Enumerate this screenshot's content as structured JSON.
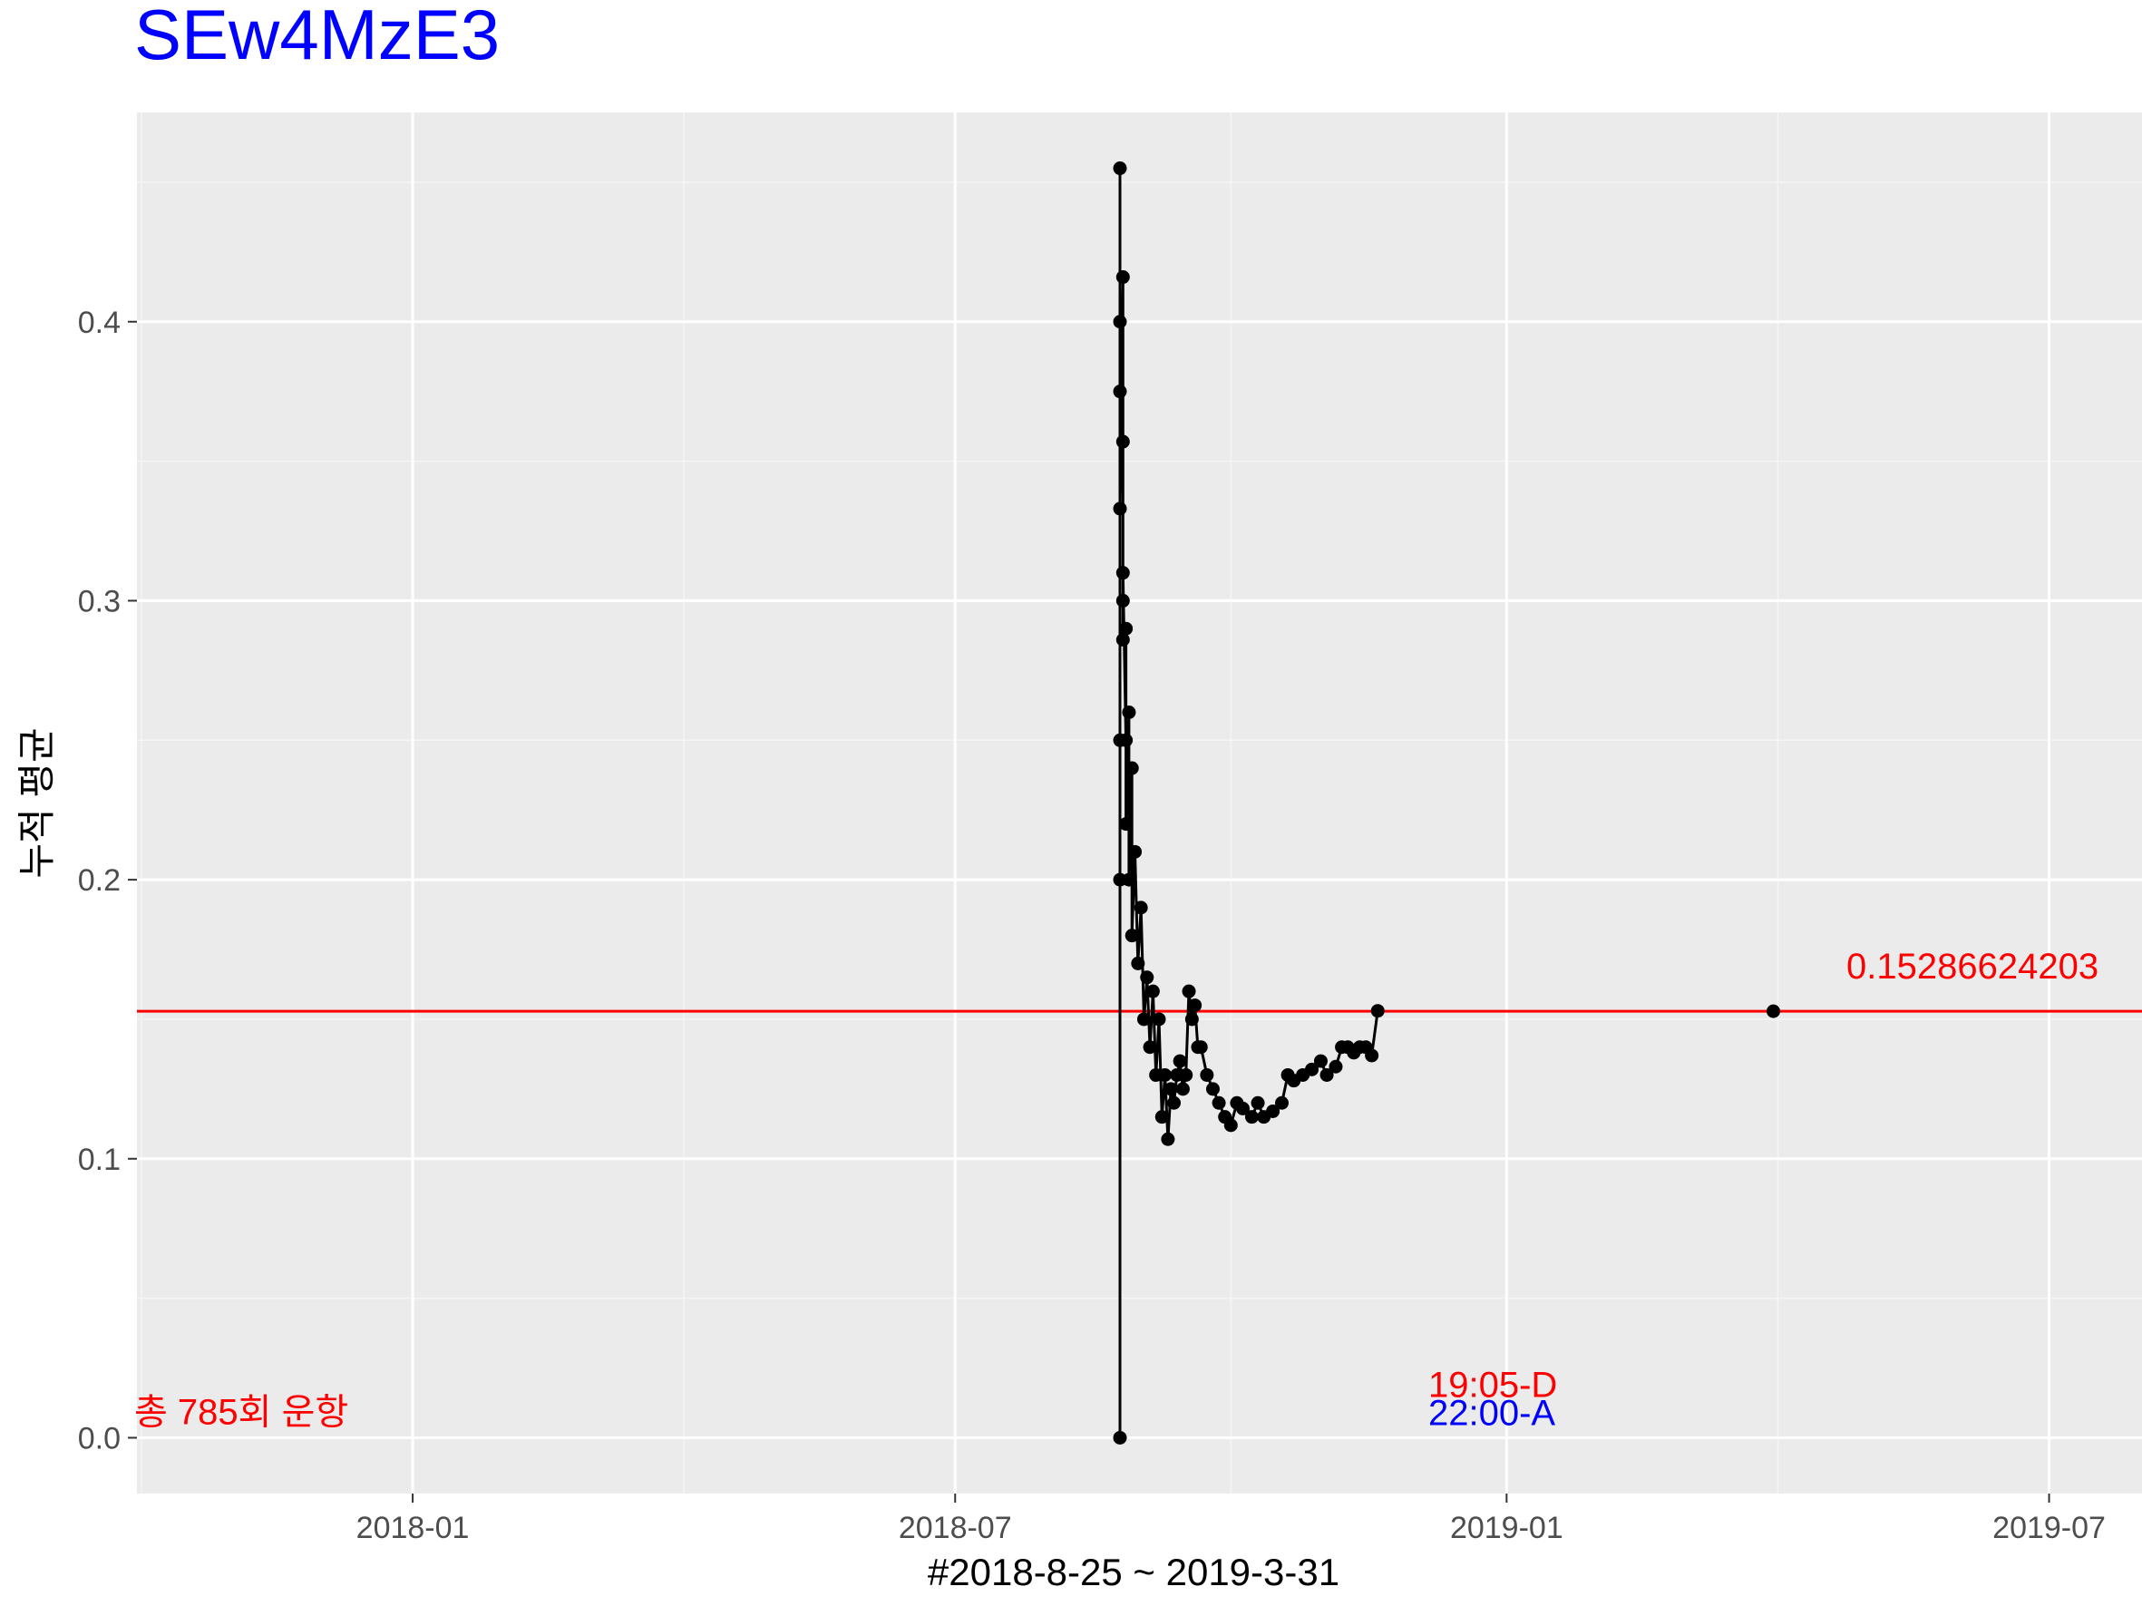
{
  "chart_data": {
    "type": "line",
    "title": "SEw4MzE3",
    "xlabel": "#2018-8-25 ~ 2019-3-31",
    "ylabel": "누적 평균",
    "x_ticks": [
      "2018-01",
      "2018-07",
      "2019-01",
      "2019-07"
    ],
    "y_ticks": [
      "0.0",
      "0.1",
      "0.2",
      "0.3",
      "0.4"
    ],
    "xlim": [
      "2017-10-01",
      "2019-08-01"
    ],
    "ylim": [
      -0.02,
      0.475
    ],
    "grid": true,
    "hline": {
      "value": 0.15286624203,
      "label": "0.15286624203"
    },
    "annotations": {
      "total_flights": "총 785회 운항",
      "departure_time": "19:05-D",
      "arrival_time": "22:00-A"
    },
    "series": [
      {
        "x": [
          "2018-08-25",
          "2018-08-25",
          "2018-08-25",
          "2018-08-25",
          "2018-08-25",
          "2018-08-25",
          "2018-08-25",
          "2018-08-26",
          "2018-08-26",
          "2018-08-26",
          "2018-08-26",
          "2018-08-26",
          "2018-08-27",
          "2018-08-27",
          "2018-08-27",
          "2018-08-28",
          "2018-08-28",
          "2018-08-29",
          "2018-08-29",
          "2018-08-30",
          "2018-08-31",
          "2018-09-01",
          "2018-09-02",
          "2018-09-03",
          "2018-09-04",
          "2018-09-05",
          "2018-09-06",
          "2018-09-07",
          "2018-09-08",
          "2018-09-09",
          "2018-09-10",
          "2018-09-11",
          "2018-09-12",
          "2018-09-13",
          "2018-09-14",
          "2018-09-15",
          "2018-09-16",
          "2018-09-17",
          "2018-09-18",
          "2018-09-19",
          "2018-09-20",
          "2018-09-21",
          "2018-09-23",
          "2018-09-25",
          "2018-09-27",
          "2018-09-29",
          "2018-10-01",
          "2018-10-03",
          "2018-10-05",
          "2018-10-08",
          "2018-10-10",
          "2018-10-12",
          "2018-10-15",
          "2018-10-18",
          "2018-10-20",
          "2018-10-22",
          "2018-10-25",
          "2018-10-28",
          "2018-10-31",
          "2018-11-02",
          "2018-11-05",
          "2018-11-07",
          "2018-11-09",
          "2018-11-11",
          "2018-11-13",
          "2018-11-15",
          "2018-11-17",
          "2018-11-19",
          "2019-03-31"
        ],
        "y": [
          0.0,
          0.455,
          0.2,
          0.4,
          0.25,
          0.375,
          0.333,
          0.416,
          0.286,
          0.357,
          0.3,
          0.31,
          0.25,
          0.29,
          0.22,
          0.26,
          0.2,
          0.24,
          0.18,
          0.21,
          0.17,
          0.19,
          0.15,
          0.165,
          0.14,
          0.16,
          0.13,
          0.15,
          0.115,
          0.13,
          0.107,
          0.125,
          0.12,
          0.13,
          0.135,
          0.125,
          0.13,
          0.16,
          0.15,
          0.155,
          0.14,
          0.14,
          0.13,
          0.125,
          0.12,
          0.115,
          0.112,
          0.12,
          0.118,
          0.115,
          0.12,
          0.115,
          0.117,
          0.12,
          0.13,
          0.128,
          0.13,
          0.132,
          0.135,
          0.13,
          0.133,
          0.14,
          0.14,
          0.138,
          0.14,
          0.14,
          0.137,
          0.153,
          0.15286624203
        ]
      }
    ]
  }
}
